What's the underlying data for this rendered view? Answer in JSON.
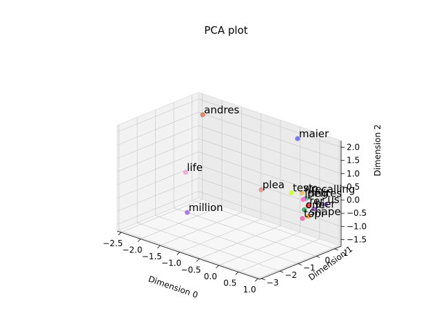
{
  "chart_data": {
    "type": "scatter",
    "projection": "3d",
    "title": "PCA plot",
    "xlabel": "Dimension 0",
    "ylabel": "Dimension 1",
    "zlabel": "Dimension 2",
    "xticks": [
      "−2.5",
      "−2.0",
      "−1.5",
      "−1.0",
      "−0.5",
      "0.0",
      "0.5",
      "1.0"
    ],
    "yticks": [
      "−3",
      "−2",
      "−1",
      "0",
      "1"
    ],
    "zticks": [
      "−1.5",
      "−1.0",
      "−0.5",
      "0.0",
      "0.5",
      "1.0",
      "1.5",
      "2.0"
    ],
    "xlim": [
      -2.6,
      1.05
    ],
    "ylim": [
      -3.1,
      1.35
    ],
    "zlim": [
      -1.75,
      2.25
    ],
    "grid": true,
    "points": [
      {
        "label": "andres",
        "x": -2.0,
        "y": 0.3,
        "z": 2.0,
        "color": "#e07b63"
      },
      {
        "label": "maier",
        "x": 0.1,
        "y": 1.0,
        "z": 1.95,
        "color": "#6f6ff5"
      },
      {
        "label": "plea",
        "x": -0.6,
        "y": 0.5,
        "z": -0.2,
        "color": "#e89090"
      },
      {
        "label": "life",
        "x": -2.3,
        "y": 0.0,
        "z": -0.25,
        "color": "#f0a8d0"
      },
      {
        "label": "million",
        "x": -0.9,
        "y": -2.9,
        "z": -0.25,
        "color": "#a070e0"
      },
      {
        "label": "test",
        "x": 0.2,
        "y": 0.45,
        "z": 0.1,
        "color": "#ccff33"
      },
      {
        "label": "recalling",
        "x": 0.55,
        "y": 0.7,
        "z": 0.15,
        "color": "#b8b8b8"
      },
      {
        "label": "wo",
        "x": 0.4,
        "y": 0.6,
        "z": 0.15,
        "color": "#f0c060"
      },
      {
        "label": "ing",
        "x": 0.6,
        "y": 0.65,
        "z": 0.05,
        "color": "#d0d0d0"
      },
      {
        "label": "pelites",
        "x": 0.55,
        "y": 0.5,
        "z": 0.05,
        "color": "#60c0a0"
      },
      {
        "label": "us",
        "x": 0.9,
        "y": 0.85,
        "z": -0.1,
        "color": "#a070e0"
      },
      {
        "label": "lt",
        "x": 0.55,
        "y": 0.35,
        "z": 0.05,
        "color": "#ff66cc"
      },
      {
        "label": "rer",
        "x": 0.65,
        "y": 0.4,
        "z": -0.15,
        "color": "#ff3333"
      },
      {
        "label": "bier",
        "x": 0.75,
        "y": 0.5,
        "z": -0.25,
        "color": "#9966cc"
      },
      {
        "label": "one",
        "x": 0.6,
        "y": 0.3,
        "z": -0.3,
        "color": "#33aa66"
      },
      {
        "label": "shape",
        "x": 0.7,
        "y": 0.3,
        "z": -0.5,
        "color": "#ffaa33"
      },
      {
        "label": "topi",
        "x": 0.6,
        "y": 0.2,
        "z": -0.6,
        "color": "#ee66aa"
      }
    ]
  }
}
